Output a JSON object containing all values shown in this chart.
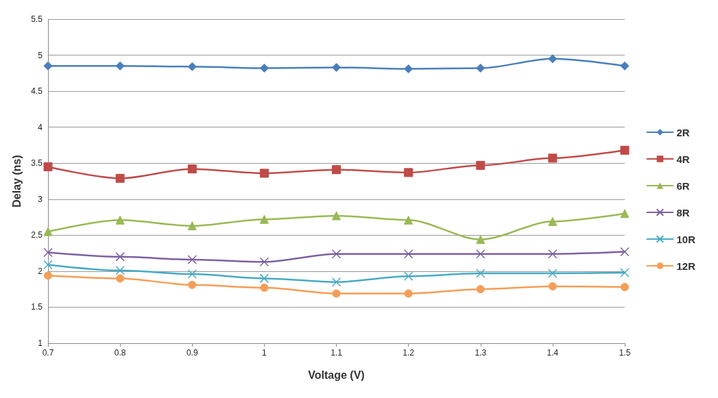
{
  "chart_data": {
    "type": "line",
    "xlabel": "Voltage (V)",
    "ylabel": "Delay (ns)",
    "x": [
      0.7,
      0.8,
      0.9,
      1,
      1.1,
      1.2,
      1.3,
      1.4,
      1.5
    ],
    "xlim": [
      0.7,
      1.5
    ],
    "xticks": [
      0.7,
      0.8,
      0.9,
      1,
      1.1,
      1.2,
      1.3,
      1.4,
      1.5
    ],
    "ylim": [
      1,
      5.5
    ],
    "yticks": [
      1,
      1.5,
      2,
      2.5,
      3,
      3.5,
      4,
      4.5,
      5,
      5.5
    ],
    "grid": "y",
    "legend": "right",
    "line_style": "solid",
    "series": [
      {
        "name": "2R",
        "color": "#4a7ebb",
        "marker": "diamond",
        "values": [
          4.85,
          4.85,
          4.84,
          4.82,
          4.83,
          4.81,
          4.82,
          4.95,
          4.85
        ]
      },
      {
        "name": "4R",
        "color": "#be4b48",
        "marker": "square",
        "values": [
          3.45,
          3.29,
          3.42,
          3.36,
          3.41,
          3.37,
          3.47,
          3.57,
          3.68
        ]
      },
      {
        "name": "6R",
        "color": "#98b954",
        "marker": "triangle",
        "values": [
          2.55,
          2.71,
          2.63,
          2.72,
          2.77,
          2.71,
          2.44,
          2.69,
          2.8
        ]
      },
      {
        "name": "8R",
        "color": "#7d60a0",
        "marker": "cross",
        "values": [
          2.26,
          2.2,
          2.16,
          2.13,
          2.24,
          2.24,
          2.24,
          2.24,
          2.27
        ]
      },
      {
        "name": "10R",
        "color": "#46aac5",
        "marker": "cross",
        "values": [
          2.09,
          2.01,
          1.96,
          1.9,
          1.85,
          1.93,
          1.97,
          1.97,
          1.98
        ]
      },
      {
        "name": "12R",
        "color": "#f59d56",
        "marker": "circle",
        "values": [
          1.94,
          1.9,
          1.81,
          1.77,
          1.69,
          1.69,
          1.75,
          1.79,
          1.78
        ]
      }
    ]
  }
}
